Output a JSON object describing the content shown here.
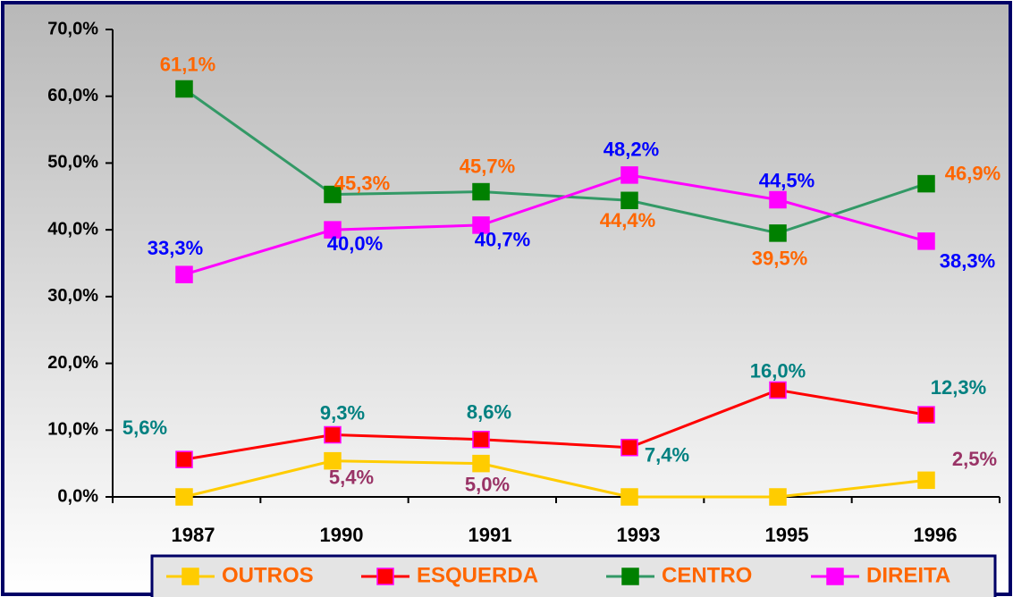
{
  "chart_data": {
    "type": "line",
    "categories": [
      "1987",
      "1990",
      "1991",
      "1993",
      "1995",
      "1996"
    ],
    "ylim": [
      0,
      70
    ],
    "yticks": [
      {
        "value": 0,
        "label": "0,0%"
      },
      {
        "value": 10,
        "label": "10,0%"
      },
      {
        "value": 20,
        "label": "20,0%"
      },
      {
        "value": 30,
        "label": "30,0%"
      },
      {
        "value": 40,
        "label": "40,0%"
      },
      {
        "value": 50,
        "label": "50,0%"
      },
      {
        "value": 60,
        "label": "60,0%"
      },
      {
        "value": 70,
        "label": "70,0%"
      }
    ],
    "legend": "bottom",
    "series": [
      {
        "name": "OUTROS",
        "color": "#ffcc00",
        "label_color": "#993366",
        "values": [
          0,
          5.4,
          5.0,
          0,
          0,
          2.5
        ],
        "value_labels": [
          null,
          "5,4%",
          "5,0%",
          null,
          null,
          "2,5%"
        ]
      },
      {
        "name": "ESQUERDA",
        "color": "#ff0000",
        "label_color": "#008080",
        "values": [
          5.6,
          9.3,
          8.6,
          7.4,
          16.0,
          12.3
        ],
        "value_labels": [
          "5,6%",
          "9,3%",
          "8,6%",
          "7,4%",
          "16,0%",
          "12,3%"
        ]
      },
      {
        "name": "CENTRO",
        "color": "#339966",
        "label_color": "#ff6600",
        "values": [
          61.1,
          45.3,
          45.7,
          44.4,
          39.5,
          46.9
        ],
        "value_labels": [
          "61,1%",
          "45,3%",
          "45,7%",
          "44,4%",
          "39,5%",
          "46,9%"
        ]
      },
      {
        "name": "DIREITA",
        "color": "#ff00ff",
        "label_color": "#0000ff",
        "values": [
          33.3,
          40.0,
          40.7,
          48.2,
          44.5,
          38.3
        ],
        "value_labels": [
          "33,3%",
          "40,0%",
          "40,7%",
          "48,2%",
          "44,5%",
          "38,3%"
        ]
      }
    ]
  }
}
